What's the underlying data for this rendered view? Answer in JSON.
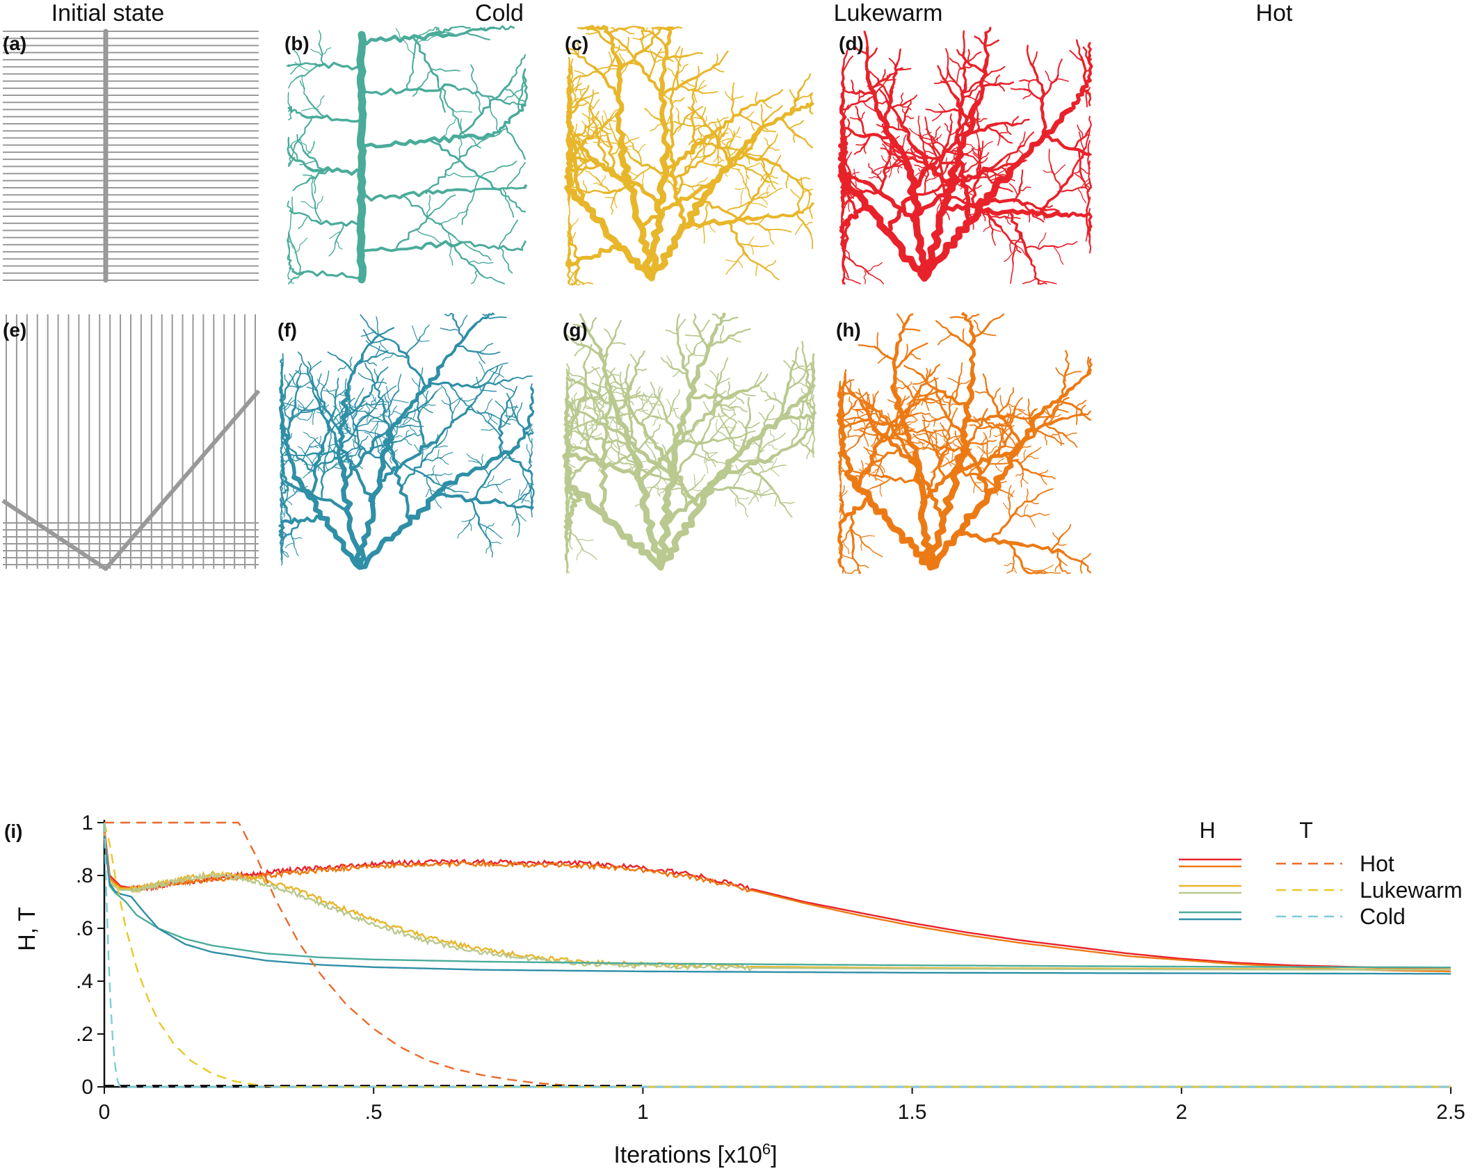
{
  "figure": {
    "column_titles": [
      "Initial state",
      "Cold",
      "Lukewarm",
      "Hot"
    ],
    "panels": [
      {
        "label": "(a)",
        "kind": "initial-comb",
        "color": "#999999"
      },
      {
        "label": "(b)",
        "kind": "river-network",
        "name": "Cold",
        "color": "#4aab9a"
      },
      {
        "label": "(c)",
        "kind": "river-network",
        "name": "Lukewarm",
        "color": "#e8b62a"
      },
      {
        "label": "(d)",
        "kind": "river-network",
        "name": "Hot",
        "color": "#e8222a"
      },
      {
        "label": "(e)",
        "kind": "initial-v",
        "color": "#999999"
      },
      {
        "label": "(f)",
        "kind": "river-network",
        "name": "Cold",
        "color": "#2e8fa6"
      },
      {
        "label": "(g)",
        "kind": "river-network",
        "name": "Lukewarm",
        "color": "#b9c98f"
      },
      {
        "label": "(h)",
        "kind": "river-network",
        "name": "Hot",
        "color": "#ec7a14"
      }
    ]
  },
  "chart_data": {
    "type": "line",
    "panel_label": "(i)",
    "xlabel": "Iterations [x10",
    "xlabel_sup": "6",
    "xlabel_end": "]",
    "ylabel": "H, T",
    "xlim": [
      0,
      2.5
    ],
    "ylim": [
      0,
      1
    ],
    "xticks": [
      0,
      0.5,
      1,
      1.5,
      2,
      2.5
    ],
    "xtick_labels": [
      "0",
      ".5",
      "1",
      "1.5",
      "2",
      "2.5"
    ],
    "yticks": [
      0,
      0.2,
      0.4,
      0.6,
      0.8,
      1
    ],
    "ytick_labels": [
      "0",
      ".2",
      ".4",
      ".6",
      ".8",
      "1"
    ],
    "legend": {
      "header_h": "H",
      "header_t": "T",
      "entries": [
        "Hot",
        "Lukewarm",
        "Cold"
      ]
    },
    "series": [
      {
        "group": "H",
        "legend": "Hot",
        "color": "#e8222a",
        "style": "solid",
        "x": [
          0,
          0.01,
          0.03,
          0.06,
          0.1,
          0.2,
          0.3,
          0.4,
          0.5,
          0.6,
          0.7,
          0.8,
          0.9,
          1.0,
          1.1,
          1.2,
          1.3,
          1.4,
          1.5,
          1.6,
          1.7,
          1.8,
          1.9,
          2.0,
          2.1,
          2.2,
          2.3,
          2.4,
          2.5
        ],
        "y": [
          0.98,
          0.8,
          0.76,
          0.75,
          0.76,
          0.79,
          0.81,
          0.83,
          0.845,
          0.85,
          0.85,
          0.85,
          0.845,
          0.83,
          0.8,
          0.75,
          0.7,
          0.66,
          0.62,
          0.585,
          0.555,
          0.53,
          0.505,
          0.485,
          0.47,
          0.46,
          0.455,
          0.45,
          0.445
        ]
      },
      {
        "group": "H",
        "legend": "Hot",
        "color": "#ec7a14",
        "style": "solid",
        "x": [
          0,
          0.01,
          0.03,
          0.06,
          0.1,
          0.2,
          0.3,
          0.4,
          0.5,
          0.6,
          0.7,
          0.8,
          0.9,
          1.0,
          1.1,
          1.2,
          1.3,
          1.4,
          1.5,
          1.6,
          1.7,
          1.8,
          1.9,
          2.0,
          2.1,
          2.2,
          2.3,
          2.4,
          2.5
        ],
        "y": [
          0.97,
          0.79,
          0.755,
          0.75,
          0.76,
          0.785,
          0.8,
          0.82,
          0.835,
          0.84,
          0.845,
          0.84,
          0.835,
          0.82,
          0.79,
          0.745,
          0.695,
          0.65,
          0.61,
          0.575,
          0.545,
          0.52,
          0.495,
          0.48,
          0.465,
          0.455,
          0.445,
          0.44,
          0.437
        ]
      },
      {
        "group": "H",
        "legend": "Lukewarm",
        "color": "#e8b62a",
        "style": "solid",
        "x": [
          0,
          0.01,
          0.03,
          0.06,
          0.1,
          0.15,
          0.2,
          0.25,
          0.3,
          0.35,
          0.4,
          0.5,
          0.6,
          0.7,
          0.8,
          0.9,
          1.0,
          1.2,
          1.5,
          2.0,
          2.5
        ],
        "y": [
          0.96,
          0.78,
          0.75,
          0.75,
          0.77,
          0.79,
          0.805,
          0.8,
          0.78,
          0.75,
          0.71,
          0.63,
          0.565,
          0.52,
          0.49,
          0.472,
          0.463,
          0.455,
          0.45,
          0.447,
          0.445
        ]
      },
      {
        "group": "H",
        "legend": "Lukewarm",
        "color": "#b9c98f",
        "style": "solid",
        "x": [
          0,
          0.01,
          0.03,
          0.06,
          0.1,
          0.15,
          0.2,
          0.25,
          0.3,
          0.35,
          0.4,
          0.5,
          0.6,
          0.7,
          0.8,
          0.9,
          1.0,
          1.2,
          1.5,
          2.0,
          2.5
        ],
        "y": [
          0.95,
          0.77,
          0.745,
          0.745,
          0.765,
          0.785,
          0.8,
          0.79,
          0.765,
          0.735,
          0.695,
          0.615,
          0.55,
          0.51,
          0.48,
          0.465,
          0.458,
          0.45,
          0.447,
          0.444,
          0.443
        ]
      },
      {
        "group": "H",
        "legend": "Cold",
        "color": "#4aab9a",
        "style": "solid",
        "x": [
          0,
          0.01,
          0.02,
          0.04,
          0.06,
          0.1,
          0.15,
          0.2,
          0.3,
          0.4,
          0.5,
          0.7,
          1.0,
          1.5,
          2.0,
          2.5
        ],
        "y": [
          0.95,
          0.76,
          0.735,
          0.7,
          0.65,
          0.6,
          0.56,
          0.535,
          0.505,
          0.49,
          0.482,
          0.474,
          0.467,
          0.46,
          0.455,
          0.452
        ]
      },
      {
        "group": "H",
        "legend": "Cold",
        "color": "#2e8fa6",
        "style": "solid",
        "x": [
          0,
          0.01,
          0.02,
          0.03,
          0.05,
          0.07,
          0.1,
          0.15,
          0.2,
          0.3,
          0.4,
          0.5,
          0.7,
          1.0,
          1.5,
          2.0,
          2.5
        ],
        "y": [
          0.95,
          0.77,
          0.74,
          0.73,
          0.72,
          0.67,
          0.6,
          0.54,
          0.51,
          0.478,
          0.462,
          0.453,
          0.443,
          0.437,
          0.432,
          0.43,
          0.428
        ]
      },
      {
        "group": "T",
        "legend": "Hot",
        "color": "#ec6a2a",
        "style": "dashed",
        "x": [
          0,
          0.25,
          0.28,
          0.32,
          0.36,
          0.4,
          0.45,
          0.5,
          0.55,
          0.6,
          0.65,
          0.7,
          0.75,
          0.8,
          0.85,
          0.9,
          1.0,
          2.5
        ],
        "y": [
          1.0,
          1.0,
          0.88,
          0.7,
          0.55,
          0.43,
          0.31,
          0.22,
          0.15,
          0.1,
          0.068,
          0.045,
          0.028,
          0.015,
          0.007,
          0.002,
          0.0,
          0.0
        ]
      },
      {
        "group": "T",
        "legend": "Lukewarm",
        "color": "#e8c82a",
        "style": "dashed",
        "x": [
          0,
          0.01,
          0.02,
          0.04,
          0.06,
          0.08,
          0.1,
          0.13,
          0.16,
          0.2,
          0.24,
          0.28,
          0.32,
          2.5
        ],
        "y": [
          1.0,
          0.92,
          0.8,
          0.6,
          0.45,
          0.34,
          0.25,
          0.16,
          0.1,
          0.05,
          0.022,
          0.008,
          0.0,
          0.0
        ]
      },
      {
        "group": "T",
        "legend": "Cold",
        "color": "#7ccdd6",
        "style": "dashed",
        "x": [
          0,
          0.004,
          0.008,
          0.012,
          0.016,
          0.02,
          0.025,
          0.03,
          2.5
        ],
        "y": [
          1.0,
          0.72,
          0.48,
          0.3,
          0.17,
          0.08,
          0.02,
          0.0,
          0.0
        ]
      }
    ]
  }
}
